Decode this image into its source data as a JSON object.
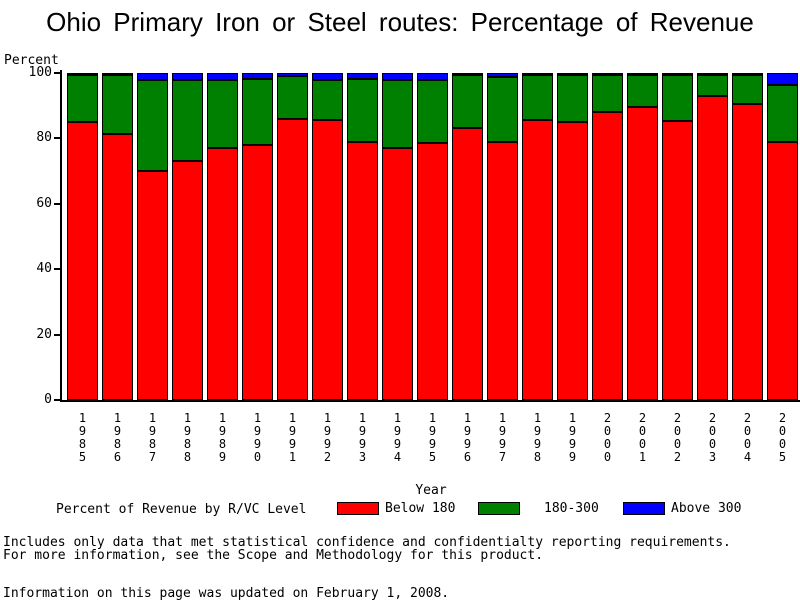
{
  "title": "Ohio Primary Iron or Steel routes: Percentage of Revenue",
  "y_axis": {
    "label": "Percent",
    "ticks": [
      0,
      20,
      40,
      60,
      80,
      100
    ]
  },
  "x_axis": {
    "label": "Year"
  },
  "legend": {
    "title": "Percent of Revenue by R/VC Level",
    "items": [
      {
        "label": "Below 180",
        "color": "#ff0000"
      },
      {
        "label": "180-300",
        "color": "#008000"
      },
      {
        "label": "Above 300",
        "color": "#0000ff"
      }
    ]
  },
  "footer": {
    "line1": "Includes only data that met statistical confidence and confidentialty reporting requirements.",
    "line2": "For more information, see the Scope and Methodology for this product.",
    "updated": "Information on this page was updated on February 1, 2008."
  },
  "chart_data": {
    "type": "bar",
    "stacked": true,
    "title": "Ohio Primary Iron or Steel routes: Percentage of Revenue",
    "xlabel": "Year",
    "ylabel": "Percent",
    "ylim": [
      0,
      100
    ],
    "grid": false,
    "legend_position": "bottom",
    "categories": [
      "1985",
      "1986",
      "1987",
      "1988",
      "1989",
      "1990",
      "1991",
      "1992",
      "1993",
      "1994",
      "1995",
      "1996",
      "1997",
      "1998",
      "1999",
      "2000",
      "2001",
      "2002",
      "2003",
      "2004",
      "2005"
    ],
    "series": [
      {
        "name": "Below 180",
        "color": "#ff0000",
        "values": [
          85,
          81.5,
          70,
          73,
          77,
          78,
          86,
          85.5,
          79,
          77,
          78.5,
          83.5,
          79,
          85.5,
          85,
          88,
          89.5,
          85.5,
          93,
          90.5,
          79
        ]
      },
      {
        "name": "180-300",
        "color": "#008000",
        "values": [
          14.3,
          18.1,
          28,
          25,
          21,
          20.3,
          13,
          12.5,
          19.2,
          21,
          19.5,
          16.1,
          19.7,
          14,
          14.4,
          11.4,
          10,
          14.2,
          6.4,
          9,
          17.3
        ]
      },
      {
        "name": "Above 300",
        "color": "#0000ff",
        "values": [
          0.7,
          0.4,
          2,
          2,
          2,
          1.7,
          1,
          2,
          1.8,
          2,
          2,
          0.4,
          1.3,
          0.5,
          0.6,
          0.6,
          0.5,
          0.3,
          0.6,
          0.5,
          3.7
        ]
      }
    ]
  }
}
